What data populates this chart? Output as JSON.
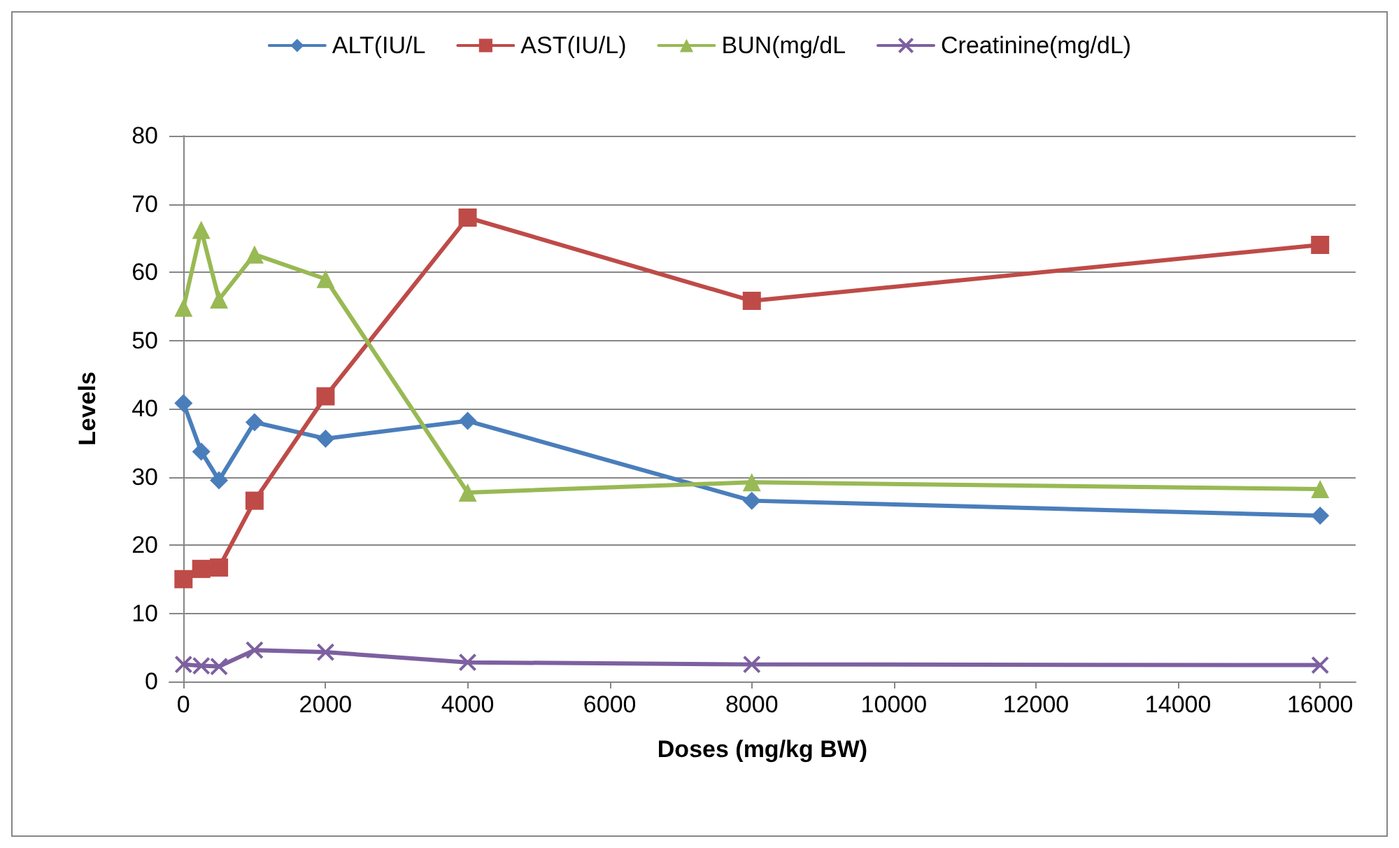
{
  "chart_data": {
    "type": "line",
    "xlabel": "Doses (mg/kg BW)",
    "ylabel": "Levels",
    "x": [
      0,
      250,
      500,
      1000,
      2000,
      4000,
      8000,
      16000
    ],
    "series": [
      {
        "name": "ALT(IU/L",
        "color": "#4a7ebb",
        "marker": "diamond",
        "values": [
          40.8,
          33.7,
          29.5,
          38,
          35.6,
          38.2,
          26.5,
          24.3
        ]
      },
      {
        "name": "AST(IU/L)",
        "color": "#be4b48",
        "marker": "square",
        "values": [
          15,
          16.5,
          16.7,
          26.5,
          41.8,
          68,
          55.8,
          64
        ]
      },
      {
        "name": "BUN(mg/dL",
        "color": "#98b954",
        "marker": "triangle",
        "values": [
          54.8,
          66.2,
          56,
          62.6,
          59,
          27.7,
          29.2,
          28.2
        ]
      },
      {
        "name": "Creatinine(mg/dL)",
        "color": "#7d60a0",
        "marker": "cross",
        "values": [
          2.5,
          2.3,
          2.2,
          4.6,
          4.3,
          2.8,
          2.5,
          2.4
        ]
      }
    ],
    "xlim": [
      -200,
      16500
    ],
    "xticks": [
      0,
      2000,
      4000,
      6000,
      8000,
      10000,
      12000,
      14000,
      16000
    ],
    "ylim": [
      0,
      80
    ],
    "yticks": [
      0,
      10,
      20,
      30,
      40,
      50,
      60,
      70,
      80
    ],
    "grid": "y",
    "legend": "top",
    "line_style": "solid"
  }
}
